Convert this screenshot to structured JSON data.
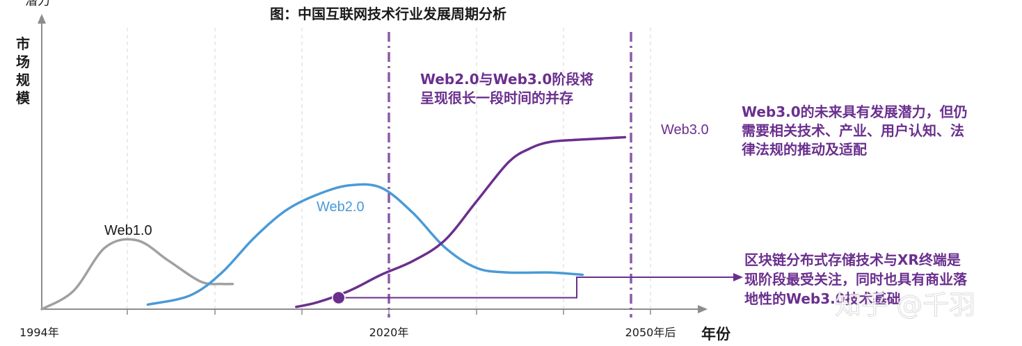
{
  "chart_data": {
    "type": "line",
    "title": "图：中国互联网技术行业发展周期分析",
    "ylabel_top": "潜力",
    "ylabel": "市场规模",
    "xlabel": "年份",
    "x_ticks": [
      "1994年",
      "2020年",
      "2050年后"
    ],
    "markers": [
      "2020年",
      "2050年后"
    ],
    "series": [
      {
        "name": "Web1.0",
        "color": "#a0a0a0",
        "points": [
          [
            1994,
            0
          ],
          [
            1997,
            8
          ],
          [
            2000,
            27
          ],
          [
            2003,
            30
          ],
          [
            2006,
            21
          ],
          [
            2009,
            12
          ],
          [
            2011,
            11
          ],
          [
            2012,
            11
          ]
        ]
      },
      {
        "name": "Web2.0",
        "color": "#4a9ad6",
        "points": [
          [
            2004,
            2
          ],
          [
            2008,
            6
          ],
          [
            2011,
            16
          ],
          [
            2014,
            31
          ],
          [
            2017,
            43
          ],
          [
            2020,
            50
          ],
          [
            2023,
            54
          ],
          [
            2026,
            53
          ],
          [
            2029,
            42
          ],
          [
            2032,
            27
          ],
          [
            2035,
            18
          ],
          [
            2038,
            16
          ],
          [
            2042,
            16
          ],
          [
            2045,
            15
          ]
        ]
      },
      {
        "name": "Web3.0",
        "color": "#6a2f8e",
        "points": [
          [
            2018,
            1
          ],
          [
            2020,
            3
          ],
          [
            2023,
            8
          ],
          [
            2026,
            15
          ],
          [
            2029,
            21
          ],
          [
            2032,
            30
          ],
          [
            2035,
            47
          ],
          [
            2038,
            64
          ],
          [
            2040,
            70
          ],
          [
            2042,
            73
          ],
          [
            2045,
            74
          ],
          [
            2049,
            75
          ]
        ]
      }
    ],
    "highlight_point": [
      2022,
      5
    ],
    "annotations": [
      {
        "text_lines": [
          "Web2.0与Web3.0阶段将",
          "呈现很长一段时间的并存"
        ],
        "color": "#6a2f8e"
      },
      {
        "text_lines": [
          "Web3.0的未来具有发展潜力，但仍",
          "需要相关技术、产业、用户认知、法",
          "律法规的推动及适配"
        ],
        "color": "#6a2f8e"
      },
      {
        "text_lines": [
          "区块链分布式存储技术与XR终端是",
          "现阶段最受关注，同时也具有商业落",
          "地性的Web3.0技术基础"
        ],
        "color": "#6a2f8e"
      }
    ],
    "watermark": "知乎 @千羽"
  }
}
